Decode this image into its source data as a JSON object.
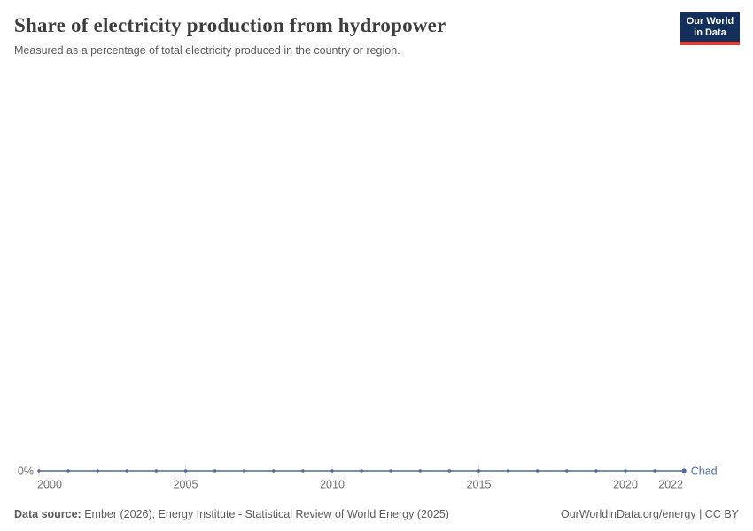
{
  "header": {
    "title": "Share of electricity production from hydropower",
    "subtitle": "Measured as a percentage of total electricity produced in the country or region."
  },
  "logo": {
    "line1": "Our World",
    "line2": "in Data",
    "bg_color": "#12305b",
    "accent_color": "#e23d33"
  },
  "chart_data": {
    "type": "line",
    "title": "Share of electricity production from hydropower",
    "unit": "%",
    "grid": false,
    "entity": "Chad",
    "line_color": "#4c6a9c",
    "axis_text_color": "#6e6e6e",
    "tick_line_color": "#dedede",
    "x": [
      2000,
      2001,
      2002,
      2003,
      2004,
      2005,
      2006,
      2007,
      2008,
      2009,
      2010,
      2011,
      2012,
      2013,
      2014,
      2015,
      2016,
      2017,
      2018,
      2019,
      2020,
      2021,
      2022
    ],
    "series": [
      {
        "name": "Chad",
        "values": [
          0,
          0,
          0,
          0,
          0,
          0,
          0,
          0,
          0,
          0,
          0,
          0,
          0,
          0,
          0,
          0,
          0,
          0,
          0,
          0,
          0,
          0,
          0
        ]
      }
    ],
    "xticks": [
      2000,
      2005,
      2010,
      2015,
      2020,
      2022
    ],
    "yticks": [
      0
    ],
    "ytick_labels": [
      "0%"
    ],
    "ylim": [
      0,
      100
    ],
    "legend_position": "end-of-line"
  },
  "footer": {
    "source_label": "Data source:",
    "source_text": " Ember (2026); Energy Institute - Statistical Review of World Energy (2025)",
    "right_text": "OurWorldinData.org/energy | CC BY"
  }
}
